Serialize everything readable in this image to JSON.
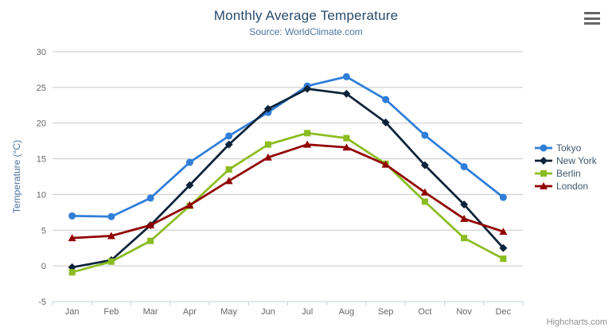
{
  "header": {
    "title": "Monthly Average Temperature",
    "subtitle": "Source: WorldClimate.com"
  },
  "chart_data": {
    "type": "line",
    "title": "Monthly Average Temperature",
    "subtitle": "Source: WorldClimate.com",
    "xlabel": "",
    "ylabel": "Temperature (°C)",
    "ylim": [
      -5,
      30
    ],
    "ytick_step": 5,
    "grid": true,
    "legend_position": "right",
    "categories": [
      "Jan",
      "Feb",
      "Mar",
      "Apr",
      "May",
      "Jun",
      "Jul",
      "Aug",
      "Sep",
      "Oct",
      "Nov",
      "Dec"
    ],
    "series": [
      {
        "name": "Tokyo",
        "color": "#2f7ed8",
        "marker": "circle",
        "values": [
          7.0,
          6.9,
          9.5,
          14.5,
          18.2,
          21.5,
          25.2,
          26.5,
          23.3,
          18.3,
          13.9,
          9.6
        ]
      },
      {
        "name": "New York",
        "color": "#0d233a",
        "marker": "diamond",
        "values": [
          -0.2,
          0.8,
          5.7,
          11.3,
          17.0,
          22.0,
          24.8,
          24.1,
          20.1,
          14.1,
          8.6,
          2.5
        ]
      },
      {
        "name": "Berlin",
        "color": "#8bbc21",
        "marker": "square",
        "values": [
          -0.9,
          0.6,
          3.5,
          8.4,
          13.5,
          17.0,
          18.6,
          17.9,
          14.3,
          9.0,
          3.9,
          1.0
        ]
      },
      {
        "name": "London",
        "color": "#910000",
        "marker": "triangle",
        "values": [
          3.9,
          4.2,
          5.7,
          8.5,
          11.9,
          15.2,
          17.0,
          16.6,
          14.2,
          10.3,
          6.6,
          4.8
        ]
      }
    ]
  },
  "axis_colors": {
    "grid": "#c8c8c8",
    "axis_line": "#c0d0e0",
    "labels": "#666666",
    "y_title": "#4d759e"
  },
  "menu": {
    "icon": "hamburger-icon"
  },
  "credit": {
    "label": "Highcharts.com"
  }
}
